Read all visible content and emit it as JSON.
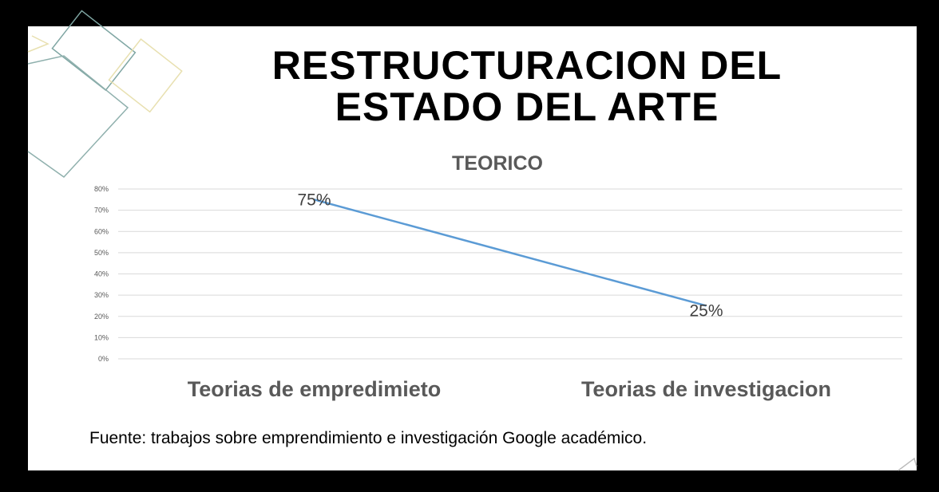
{
  "chart_data": {
    "type": "line",
    "title": "RESTRUCTURACION DEL ESTADO DEL ARTE",
    "subtitle": "TEORICO",
    "categories": [
      "Teorias de empredimieto",
      "Teorias de investigacion"
    ],
    "series": [
      {
        "color": "#5b9bd5",
        "values": [
          75,
          25
        ],
        "value_labels": [
          "75%",
          "25%"
        ]
      }
    ],
    "ylim": [
      0,
      80
    ],
    "yticks": [
      {
        "value": 0,
        "label": "0%"
      },
      {
        "value": 10,
        "label": "10%"
      },
      {
        "value": 20,
        "label": "20%"
      },
      {
        "value": 30,
        "label": "30%"
      },
      {
        "value": 40,
        "label": "40%"
      },
      {
        "value": 50,
        "label": "50%"
      },
      {
        "value": 60,
        "label": "60%"
      },
      {
        "value": 70,
        "label": "70%"
      },
      {
        "value": 80,
        "label": "80%"
      }
    ],
    "grid": true,
    "source": "Fuente: trabajos sobre emprendimiento e investigación Google académico."
  }
}
